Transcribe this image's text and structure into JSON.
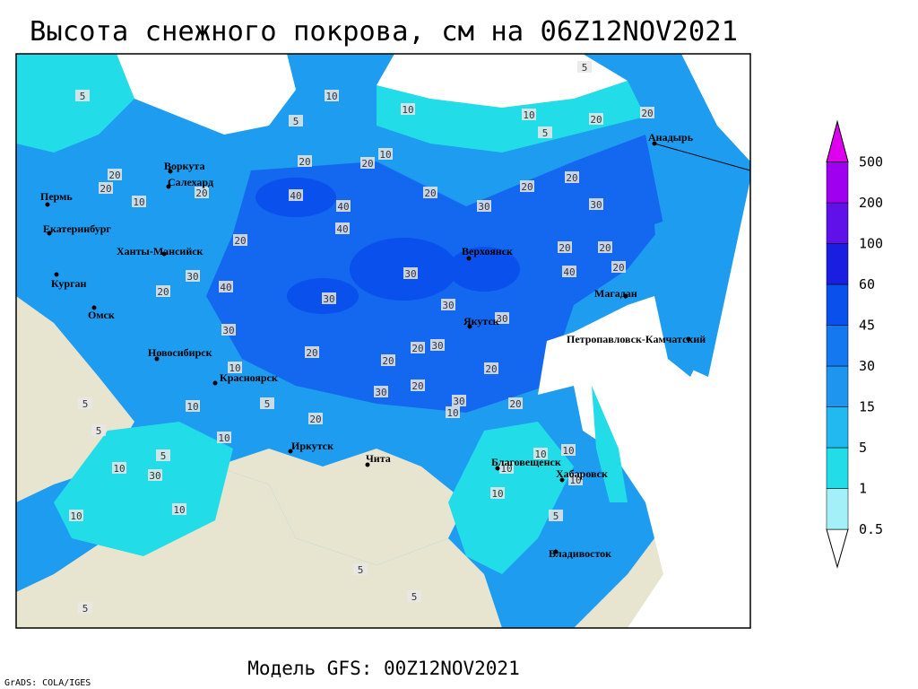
{
  "header": {
    "title": "Высота снежного покрова, см на 06Z12NOV2021"
  },
  "colorbar": {
    "levels": [
      0.5,
      1,
      5,
      15,
      30,
      45,
      60,
      100,
      200,
      500
    ],
    "colors": [
      "#ffffff",
      "#a4f0f8",
      "#22dce8",
      "#22b8f0",
      "#1e96f0",
      "#1478f0",
      "#0a50ec",
      "#1a1ee0",
      "#6010e8",
      "#a000f0",
      "#e000f0"
    ]
  },
  "cities": [
    "Воркута",
    "Салехард",
    "Пермь",
    "Екатеринбург",
    "Ханты-Мансийск",
    "Курган",
    "Омск",
    "Новосибирск",
    "Красноярск",
    "Иркутск",
    "Чита",
    "Верхоянск",
    "Якутск",
    "Магадан",
    "Анадырь",
    "Петропавловск-Камчатский",
    "Благовещенск",
    "Хабаровск",
    "Владивосток"
  ],
  "contour_labels": [
    5,
    5,
    10,
    10,
    10,
    5,
    5,
    20,
    20,
    10,
    20,
    20,
    20,
    20,
    10,
    20,
    40,
    40,
    40,
    20,
    20,
    20,
    30,
    30,
    20,
    20,
    20,
    30,
    40,
    40,
    20,
    20,
    30,
    30,
    30,
    30,
    30,
    20,
    30,
    20,
    10,
    20,
    20,
    30,
    20,
    30,
    10,
    20,
    5,
    5,
    10,
    20,
    5,
    10,
    5,
    10,
    10,
    10,
    30,
    10,
    10,
    10,
    10,
    5,
    10,
    5,
    5,
    5
  ],
  "footer": {
    "model": "Модель GFS: 00Z12NOV2021",
    "credit": "GrADS: COLA/IGES"
  }
}
